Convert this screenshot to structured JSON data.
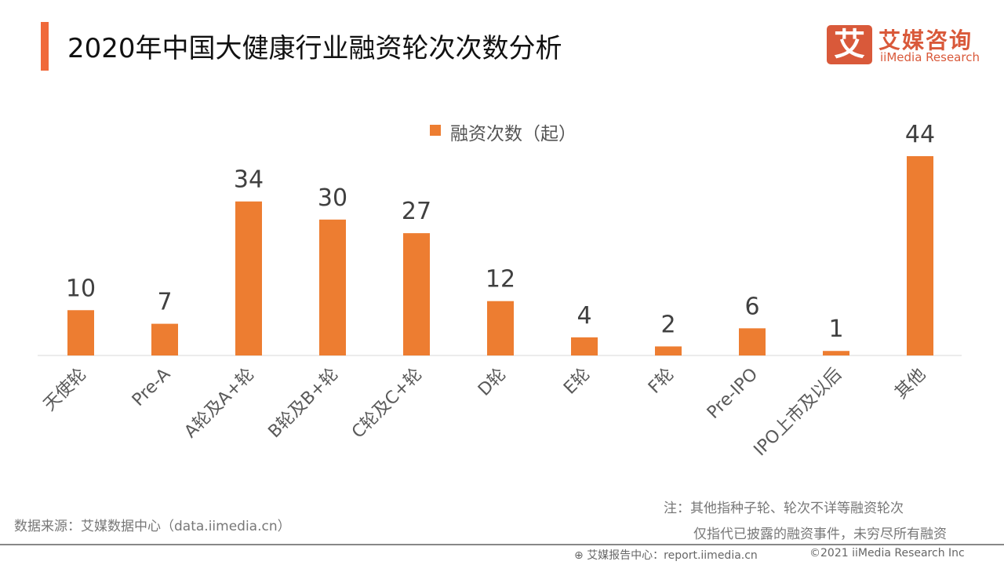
{
  "header": {
    "title": "2020年中国大健康行业融资轮次次数分析",
    "logo_cn": "艾媒咨询",
    "logo_en": "iiMedia Research",
    "logo_mark": "艾"
  },
  "chart_data": {
    "type": "bar",
    "categories": [
      "天使轮",
      "Pre-A",
      "A轮及A+轮",
      "B轮及B+轮",
      "C轮及C+轮",
      "D轮",
      "E轮",
      "F轮",
      "Pre-IPO",
      "IPO上市及以后",
      "其他"
    ],
    "series": [
      {
        "name": "融资次数（起）",
        "values": [
          10,
          7,
          34,
          30,
          27,
          12,
          4,
          2,
          6,
          1,
          44
        ],
        "color": "#ed7d31"
      }
    ],
    "legend": "top-center",
    "grid": false,
    "data_labels": true,
    "ylim": [
      0,
      44
    ]
  },
  "footer": {
    "source": "数据来源：艾媒数据中心（data.iimedia.cn）",
    "note1": "注：其他指种子轮、轮次不详等融资轮次",
    "note2": "仅指代已披露的融资事件，未穷尽所有融资",
    "report": "艾媒报告中心：report.iimedia.cn",
    "copyright": "©2021  iiMedia Research  Inc"
  }
}
